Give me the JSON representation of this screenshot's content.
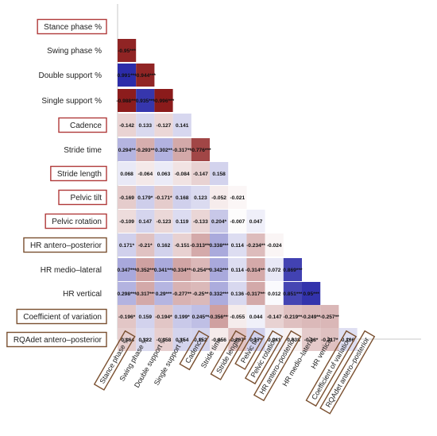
{
  "chart_data": {
    "type": "heatmap",
    "variables": [
      "Stance phase %",
      "Swing phase %",
      "Double support %",
      "Single support %",
      "Cadence",
      "Stride time",
      "Stride length",
      "Pelvic tilt",
      "Pelvic rotation",
      "HR antero–posterior",
      "HR medio–lateral",
      "HR vertical",
      "Coefficient of variation",
      "RQAdet antero–posterior"
    ],
    "column_labels": [
      "Stance phase %",
      "Swing phase %",
      "Double support %",
      "Single support %",
      "Cadence",
      "Stride time",
      "Stride length",
      "Pelvic tilt",
      "Pelvic rotation",
      "HR antero–posterior",
      "HR medio–lateral",
      "HR vertical",
      "Coefficient of variation",
      "RQAdet antero–posterior"
    ],
    "cells": [
      [
        "-0.95***"
      ],
      [
        "0.991***",
        "-0.944***"
      ],
      [
        "-0.988***",
        "0.935***",
        "-0.996***"
      ],
      [
        "-0.142",
        "0.133",
        "-0.127",
        "0.141"
      ],
      [
        "0.294**",
        "-0.293**",
        "0.302**",
        "-0.317**",
        "-0.776***"
      ],
      [
        "0.068",
        "-0.064",
        "0.063",
        "-0.084",
        "-0.147",
        "0.158"
      ],
      [
        "-0.169",
        "0.179*",
        "-0.171*",
        "0.168",
        "0.123",
        "-0.052",
        "-0.021"
      ],
      [
        "-0.109",
        "0.147",
        "-0.123",
        "0.119",
        "-0.133",
        "0.204*",
        "-0.007",
        "0.047"
      ],
      [
        "0.171*",
        "-0.21*",
        "0.162",
        "-0.151",
        "-0.313***",
        "0.338***",
        "0.114",
        "-0.234**",
        "-0.024"
      ],
      [
        "0.347***",
        "-0.352***",
        "0.341***",
        "-0.334***",
        "-0.254**",
        "0.342***",
        "0.114",
        "-0.314***",
        "0.072",
        "0.869***"
      ],
      [
        "0.298***",
        "-0.317***",
        "0.29***",
        "-0.277**",
        "-0.25**",
        "0.332***",
        "0.136",
        "-0.317***",
        "0.012",
        "0.851***",
        "0.95***"
      ],
      [
        "-0.196*",
        "0.159",
        "-0.194*",
        "0.199*",
        "0.245**",
        "-0.356***",
        "-0.055",
        "0.044",
        "-0.147",
        "-0.219**",
        "-0.249**",
        "-0.257**"
      ],
      [
        "-0.164",
        "0.122",
        "-0.158",
        "0.154",
        "0.152",
        "-0.056",
        "-0.207*",
        "0.17*",
        "0.041",
        "-0.038",
        "-0.18*",
        "-0.217*",
        "0.106"
      ]
    ],
    "highlighted_rows": [
      "Stance phase %",
      "Cadence",
      "Stride length",
      "Pelvic tilt",
      "Pelvic rotation",
      "HR antero–posterior",
      "Coefficient of variation",
      "RQAdet antero–posterior"
    ],
    "highlighted_columns": [
      "Stance phase %",
      "Cadence",
      "Stride length",
      "Pelvic tilt",
      "Pelvic rotation",
      "HR antero–posterior",
      "Coefficient of variation",
      "RQAdet antero–posterior"
    ],
    "color_scale": {
      "negative": "#8b1a1a",
      "zero": "#ffffff",
      "positive": "#2a2aa8",
      "range": [
        -1,
        1
      ]
    },
    "highlight_colors": {
      "red": "#b03a3a",
      "brown": "#7a5030"
    },
    "grid": false,
    "legend": "none"
  }
}
